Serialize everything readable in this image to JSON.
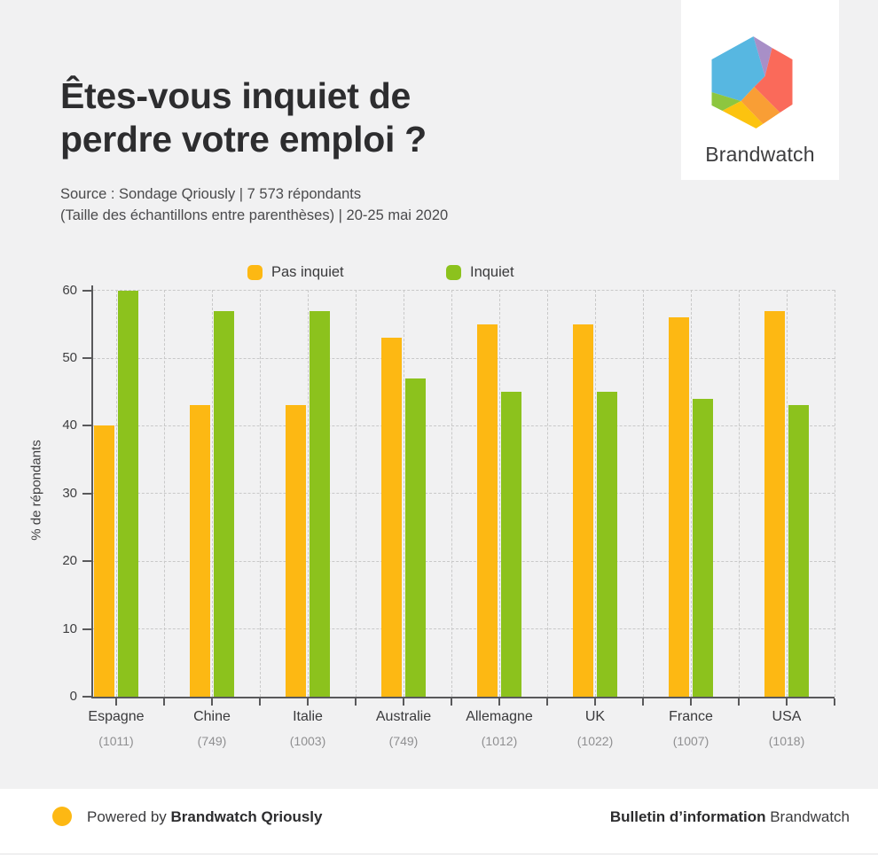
{
  "header": {
    "title_line1": "Êtes-vous inquiet de",
    "title_line2": "perdre votre emploi ?",
    "source_line1": "Source : Sondage Qriously | 7 573 répondants",
    "source_line2": "(Taille des échantillons entre parenthèses) | 20-25 mai 2020",
    "logo_text": "Brandwatch",
    "logo_colors": {
      "blue": "#57b7e1",
      "purple": "#a88fc7",
      "red": "#fa6a5a",
      "orange": "#f99e35",
      "yellow": "#fcc30f",
      "green": "#8dc63f"
    }
  },
  "legend": [
    {
      "label": "Pas inquiet",
      "color": "#fdb813"
    },
    {
      "label": "Inquiet",
      "color": "#8cc21d"
    }
  ],
  "chart_data": {
    "type": "bar",
    "title": "Êtes-vous inquiet de perdre votre emploi ?",
    "categories": [
      "Espagne",
      "Chine",
      "Italie",
      "Australie",
      "Allemagne",
      "UK",
      "France",
      "USA"
    ],
    "sample_sizes": [
      "(1011)",
      "(749)",
      "(1003)",
      "(749)",
      "(1012)",
      "(1022)",
      "(1007)",
      "(1018)"
    ],
    "series": [
      {
        "name": "Pas inquiet",
        "color": "#fdb813",
        "values": [
          40,
          43,
          43,
          53,
          55,
          55,
          56,
          57
        ]
      },
      {
        "name": "Inquiet",
        "color": "#8cc21d",
        "values": [
          60,
          57,
          57,
          47,
          45,
          45,
          44,
          43
        ]
      }
    ],
    "xlabel": "",
    "ylabel": "% de répondants",
    "yticks": [
      0,
      10,
      20,
      30,
      40,
      50,
      60
    ],
    "ylim": [
      0,
      60
    ],
    "grid": true,
    "legend_position": "top"
  },
  "footer": {
    "powered_prefix": "Powered by ",
    "powered_bold": "Brandwatch Qriously",
    "right_bold": "Bulletin d’information",
    "right_regular": " Brandwatch",
    "dot_color": "#fdb813"
  }
}
